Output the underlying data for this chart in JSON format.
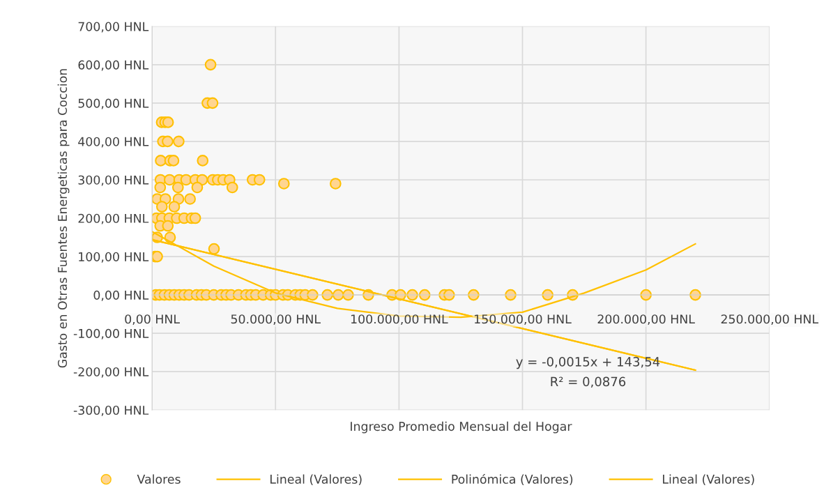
{
  "chart_data": {
    "type": "scatter",
    "xlabel": "Ingreso Promedio Mensual del Hogar",
    "ylabel": "Gasto en Otras Fuentes Energeticas para Coccion",
    "xlim": [
      0,
      250000
    ],
    "xticks": [
      {
        "value": 0,
        "label": "0,00 HNL"
      },
      {
        "value": 50000,
        "label": "50.000,00 HNL"
      },
      {
        "value": 100000,
        "label": "100.000,00 HNL"
      },
      {
        "value": 150000,
        "label": "150.000,00 HNL"
      },
      {
        "value": 200000,
        "label": "200.000,00 HNL"
      },
      {
        "value": 250000,
        "label": "250.000,00 HNL"
      }
    ],
    "ylim": [
      -300,
      700
    ],
    "yticks": [
      {
        "value": -300,
        "label": "-300,00 HNL"
      },
      {
        "value": -200,
        "label": "-200,00 HNL"
      },
      {
        "value": -100,
        "label": "-100,00 HNL"
      },
      {
        "value": 0,
        "label": "0,00 HNL"
      },
      {
        "value": 100,
        "label": "100,00 HNL"
      },
      {
        "value": 200,
        "label": "200,00 HNL"
      },
      {
        "value": 300,
        "label": "300,00 HNL"
      },
      {
        "value": 400,
        "label": "400,00 HNL"
      },
      {
        "value": 500,
        "label": "500,00 HNL"
      },
      {
        "value": 600,
        "label": "600,00 HNL"
      },
      {
        "value": 700,
        "label": "700,00 HNL"
      }
    ],
    "grid": true,
    "legend": "bottom",
    "annotations": [
      "y = -0,0015x + 143,54",
      "R² = 0,0876"
    ],
    "series": [
      {
        "name": "Valores",
        "marker": "circle",
        "color": "#ffc000",
        "x": [
          23700,
          22400,
          24500,
          3900,
          5300,
          6500,
          4400,
          6300,
          10800,
          3500,
          7300,
          8700,
          20500,
          3400,
          7100,
          11000,
          13800,
          17500,
          20300,
          24600,
          26600,
          28800,
          31400,
          40700,
          43500,
          53400,
          74300,
          3300,
          10500,
          18300,
          32500,
          2100,
          5400,
          10700,
          15400,
          4000,
          9000,
          1800,
          4000,
          7000,
          10000,
          13000,
          16000,
          17500,
          3300,
          6400,
          2100,
          7300,
          25100,
          1300,
          2100,
          1500,
          3000,
          5000,
          7000,
          9000,
          11000,
          13000,
          15000,
          18000,
          20000,
          22000,
          25000,
          28000,
          30000,
          32000,
          35000,
          38000,
          40000,
          42000,
          45000,
          48000,
          50000,
          53000,
          55000,
          58000,
          60000,
          62000,
          65000,
          71000,
          75400,
          79400,
          87600,
          97200,
          100600,
          105400,
          110400,
          118400,
          120300,
          130200,
          145200,
          160200,
          170300,
          200000,
          220000
        ],
        "values": [
          600,
          500,
          500,
          450,
          450,
          450,
          400,
          400,
          400,
          350,
          350,
          350,
          350,
          300,
          300,
          300,
          300,
          300,
          300,
          300,
          300,
          300,
          300,
          300,
          300,
          290,
          290,
          280,
          280,
          280,
          280,
          250,
          250,
          250,
          250,
          230,
          230,
          200,
          200,
          200,
          200,
          200,
          200,
          200,
          180,
          180,
          150,
          150,
          120,
          100,
          100,
          0,
          0,
          0,
          0,
          0,
          0,
          0,
          0,
          0,
          0,
          0,
          0,
          0,
          0,
          0,
          0,
          0,
          0,
          0,
          0,
          0,
          0,
          0,
          0,
          0,
          0,
          0,
          0,
          0,
          0,
          0,
          0,
          0,
          0,
          0,
          0,
          0,
          0,
          0,
          0,
          0,
          0,
          0,
          0
        ]
      },
      {
        "name": "Lineal (Valores)",
        "type": "line",
        "color": "#ffc000",
        "x": [
          0,
          220000
        ],
        "values": [
          144,
          -196
        ]
      },
      {
        "name": "Polinómica (Valores)",
        "type": "line",
        "color": "#ffc000",
        "x": [
          0,
          25000,
          50000,
          75000,
          100000,
          125000,
          150000,
          175000,
          200000,
          220000
        ],
        "values": [
          165,
          75,
          5,
          -35,
          -55,
          -58,
          -45,
          5,
          65,
          133
        ]
      },
      {
        "name": "Lineal (Valores)",
        "type": "line",
        "color": "#ffc000",
        "x": [
          0,
          220000
        ],
        "values": [
          144,
          -196
        ]
      }
    ]
  }
}
